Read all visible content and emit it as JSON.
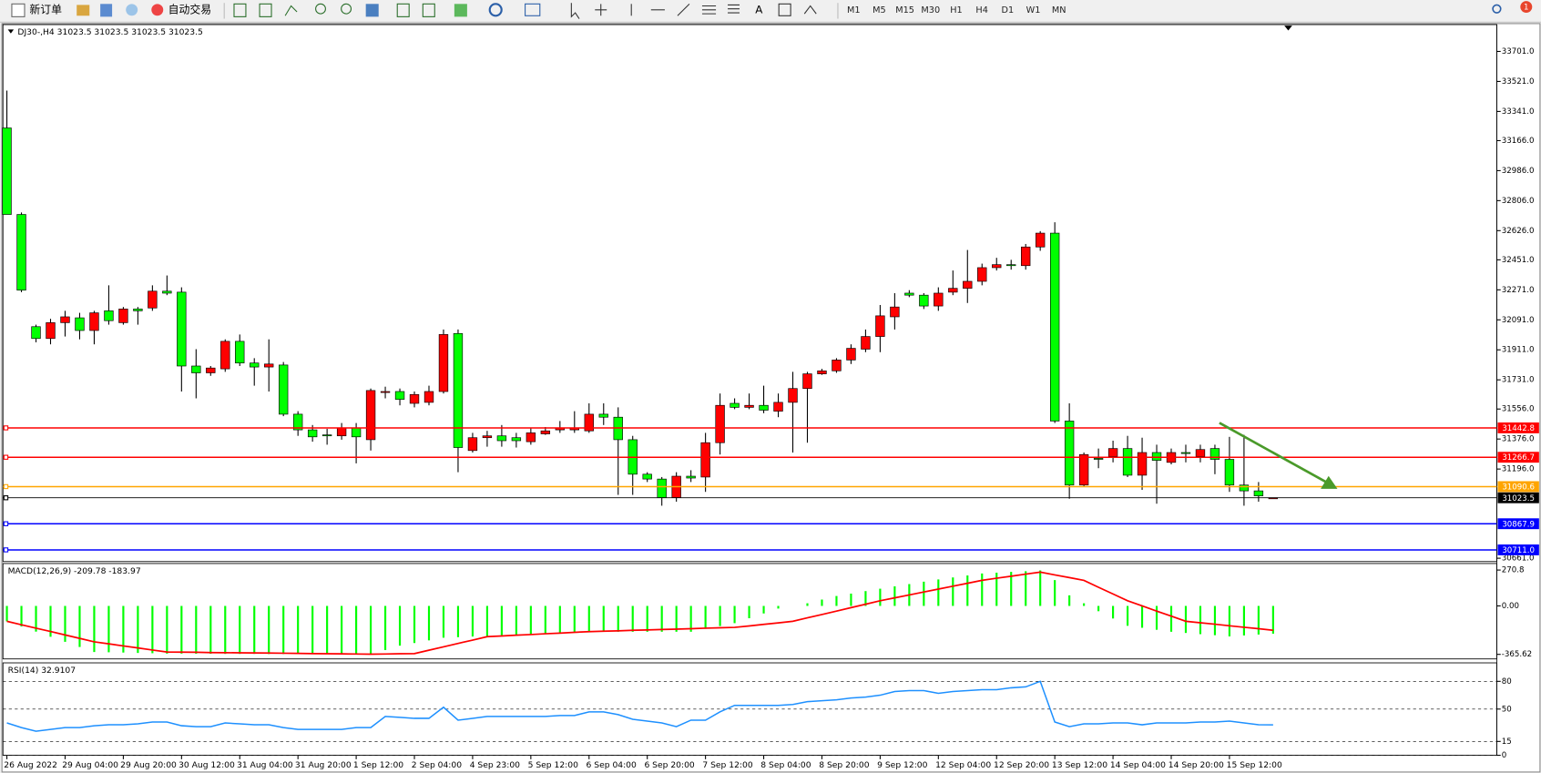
{
  "toolbar": {
    "new_order": "新订单",
    "auto_trading": "自动交易",
    "timeframes": [
      "M1",
      "M5",
      "M15",
      "M30",
      "H1",
      "H4",
      "D1",
      "W1",
      "MN"
    ],
    "alert_count": "1"
  },
  "chart_data": [
    {
      "type": "candlestick",
      "title": "DJ30-,H4  31023.5 31023.5 31023.5 31023.5",
      "categories": [
        "26 Aug 2022",
        null,
        null,
        null,
        "29 Aug 04:00",
        null,
        null,
        null,
        "29 Aug 20:00",
        null,
        null,
        null,
        "30 Aug 12:00",
        null,
        null,
        null,
        "31 Aug 04:00",
        null,
        null,
        null,
        "31 Aug 20:00",
        null,
        null,
        null,
        "1 Sep 12:00",
        null,
        null,
        null,
        "2 Sep 04:00",
        null,
        null,
        null,
        "4 Sep 23:00",
        null,
        null,
        null,
        "5 Sep 12:00",
        null,
        null,
        null,
        "6 Sep 04:00",
        null,
        null,
        null,
        "6 Sep 20:00",
        null,
        null,
        null,
        "7 Sep 12:00",
        null,
        null,
        null,
        "8 Sep 04:00",
        null,
        null,
        null,
        "8 Sep 20:00",
        null,
        null,
        null,
        "9 Sep 12:00",
        null,
        null,
        null,
        "12 Sep 04:00",
        null,
        null,
        null,
        "12 Sep 20:00",
        null,
        null,
        null,
        "13 Sep 12:00",
        null,
        null,
        null,
        "14 Sep 04:00",
        null,
        null,
        null,
        "14 Sep 20:00",
        null,
        null,
        null,
        "15 Sep 12:00",
        null,
        null,
        null
      ],
      "open": [
        33242,
        32723,
        32050,
        31979,
        32074,
        32103,
        32027,
        32145,
        32074,
        32156,
        32162,
        32263,
        32257,
        31814,
        31773,
        31797,
        31962,
        31832,
        31808,
        31820,
        31525,
        31431,
        31401,
        31395,
        31443,
        31372,
        31655,
        31661,
        31590,
        31596,
        31661,
        32009,
        31307,
        31384,
        31395,
        31384,
        31360,
        31407,
        31431,
        31431,
        31425,
        31525,
        31507,
        31372,
        31165,
        31136,
        31024,
        31153,
        31148,
        31354,
        31590,
        31566,
        31578,
        31543,
        31596,
        31679,
        31767,
        31785,
        31850,
        31915,
        31991,
        32109,
        32251,
        32239,
        32174,
        32257,
        32280,
        32322,
        32404,
        32422,
        32416,
        32528,
        32611,
        31484,
        31100,
        31260,
        31271,
        31319,
        31159,
        31295,
        31236,
        31295,
        31271,
        31319,
        31254,
        31100,
        31065,
        31023.5
      ],
      "high": [
        33466,
        32735,
        32062,
        32097,
        32145,
        32133,
        32145,
        32298,
        32168,
        32168,
        32298,
        32357,
        32286,
        31915,
        31814,
        31974,
        32003,
        31861,
        31974,
        31838,
        31543,
        31460,
        31437,
        31472,
        31472,
        31679,
        31690,
        31679,
        31661,
        31696,
        32033,
        32033,
        31413,
        31425,
        31460,
        31413,
        31443,
        31448,
        31484,
        31543,
        31590,
        31590,
        31566,
        31395,
        31177,
        31148,
        31177,
        31189,
        31413,
        31649,
        31620,
        31649,
        31696,
        31649,
        31779,
        31779,
        31797,
        31861,
        31944,
        32033,
        32180,
        32251,
        32269,
        32251,
        32286,
        32387,
        32510,
        32428,
        32463,
        32451,
        32546,
        32623,
        32676,
        31590,
        31295,
        31319,
        31366,
        31395,
        31384,
        31342,
        31319,
        31342,
        31342,
        31342,
        31389,
        31401,
        31118,
        31023.5
      ],
      "low": [
        32723,
        32257,
        31956,
        31944,
        31991,
        31974,
        31944,
        32062,
        32062,
        32062,
        32145,
        32239,
        31661,
        31620,
        31755,
        31779,
        31814,
        31696,
        31661,
        31513,
        31395,
        31360,
        31342,
        31372,
        31230,
        31307,
        31620,
        31578,
        31566,
        31578,
        31649,
        31177,
        31295,
        31330,
        31330,
        31325,
        31342,
        31401,
        31413,
        31413,
        31413,
        31460,
        31041,
        31041,
        31118,
        30976,
        31000,
        31118,
        31059,
        31283,
        31555,
        31555,
        31531,
        31507,
        31295,
        31354,
        31761,
        31773,
        31826,
        31897,
        31897,
        32033,
        32227,
        32156,
        32145,
        32239,
        32192,
        32298,
        32387,
        32392,
        32392,
        32505,
        31472,
        31018,
        31089,
        31201,
        31236,
        31148,
        31071,
        30988,
        31224,
        31236,
        31236,
        31165,
        31059,
        30976,
        31000,
        31023.5
      ],
      "close": [
        32723,
        32269,
        31979,
        32074,
        32109,
        32027,
        32133,
        32086,
        32156,
        32145,
        32263,
        32251,
        31814,
        31773,
        31802,
        31962,
        31832,
        31808,
        31826,
        31525,
        31431,
        31389,
        31395,
        31443,
        31389,
        31667,
        31661,
        31614,
        31643,
        31661,
        32003,
        31325,
        31384,
        31395,
        31366,
        31366,
        31413,
        31425,
        31443,
        31443,
        31525,
        31507,
        31372,
        31165,
        31136,
        31024,
        31153,
        31142,
        31354,
        31578,
        31566,
        31578,
        31549,
        31596,
        31679,
        31767,
        31785,
        31850,
        31920,
        31991,
        32115,
        32168,
        32239,
        32174,
        32251,
        32280,
        32322,
        32404,
        32422,
        32416,
        32528,
        32611,
        31484,
        31100,
        31283,
        31254,
        31319,
        31159,
        31295,
        31248,
        31295,
        31289,
        31313,
        31254,
        31100,
        31065,
        31035,
        31023.5
      ],
      "up_color": "#ff0000",
      "down_color": "#00ff00",
      "ylim": [
        30641,
        33862
      ],
      "yticks": [
        {
          "value": 33701,
          "label": "33701.0"
        },
        {
          "value": 33521,
          "label": "33521.0"
        },
        {
          "value": 33341,
          "label": "33341.0"
        },
        {
          "value": 33166,
          "label": "33166.0"
        },
        {
          "value": 32986,
          "label": "32986.0"
        },
        {
          "value": 32806,
          "label": "32806.0"
        },
        {
          "value": 32626,
          "label": "32626.0"
        },
        {
          "value": 32451,
          "label": "32451.0"
        },
        {
          "value": 32271,
          "label": "32271.0"
        },
        {
          "value": 32091,
          "label": "32091.0"
        },
        {
          "value": 31911,
          "label": "31911.0"
        },
        {
          "value": 31731,
          "label": "31731.0"
        },
        {
          "value": 31556,
          "label": "31556.0"
        },
        {
          "value": 31376,
          "label": "31376.0"
        },
        {
          "value": 31196,
          "label": "31196.0"
        },
        {
          "value": 30661,
          "label": "30661.0"
        }
      ],
      "lines": [
        {
          "value": 31442.8,
          "color": "#ff0000"
        },
        {
          "value": 31266.7,
          "color": "#ff0000"
        },
        {
          "value": 31090.6,
          "color": "#ffa500"
        },
        {
          "value": 31023.5,
          "color": "#000000"
        },
        {
          "value": 30867.9,
          "color": "#0000ff"
        },
        {
          "value": 30711,
          "label": "30711.0",
          "color": "#0000ff"
        }
      ]
    },
    {
      "type": "macd",
      "title": "MACD(12,26,9) -209.78 -183.97",
      "series": [
        {
          "color": "#00ff00",
          "values": [
            -116,
            -155,
            -194,
            -233,
            -271,
            -310,
            -348,
            -350,
            -352,
            -355,
            -357,
            -360,
            -360,
            -361,
            -361,
            -362,
            -362,
            -362,
            -363,
            -363,
            -363,
            -364,
            -364,
            -364,
            -365,
            -365,
            -333,
            -300,
            -280,
            -260,
            -240,
            -236,
            -231,
            -227,
            -222,
            -218,
            -213,
            -209,
            -204,
            -200,
            -195,
            -195,
            -195,
            -195,
            -195,
            -195,
            -195,
            -195,
            -173,
            -152,
            -130,
            -93,
            -57,
            -20,
            0,
            20,
            48,
            75,
            93,
            112,
            130,
            148,
            165,
            183,
            200,
            215,
            230,
            245,
            251,
            257,
            262,
            268,
            195,
            80,
            20,
            -40,
            -95,
            -150,
            -165,
            -180,
            -195,
            -204,
            -213,
            -221,
            -230,
            -223,
            -216,
            -209.78
          ]
        },
        {
          "color": "#ff0000",
          "values": [
            -116,
            -142,
            -168,
            -193,
            -219,
            -245,
            -271,
            -286,
            -302,
            -317,
            -333,
            -348,
            -349,
            -350,
            -352,
            -353,
            -354,
            -355,
            -356,
            -357,
            -358,
            -360,
            -361,
            -362,
            -363,
            -364,
            -363,
            -361,
            -360,
            -334,
            -309,
            -283,
            -258,
            -232,
            -227,
            -221,
            -216,
            -210,
            -205,
            -199,
            -194,
            -191,
            -188,
            -184,
            -181,
            -178,
            -175,
            -172,
            -168,
            -165,
            -162,
            -151,
            -139,
            -128,
            -116,
            -90,
            -65,
            -39,
            -13,
            13,
            39,
            61,
            83,
            105,
            127,
            149,
            171,
            193,
            209,
            224,
            240,
            255,
            234,
            214,
            193,
            141,
            90,
            39,
            0,
            -39,
            -77,
            -116,
            -127,
            -138,
            -150,
            -161,
            -172,
            -183.97
          ]
        }
      ],
      "ylim": [
        -400,
        320
      ],
      "yticks": [
        270.8,
        {
          "value": 0,
          "label": "0.00"
        },
        -365.62
      ]
    },
    {
      "type": "line",
      "title": "RSI(14) 32.9107",
      "color": "#1e90ff",
      "values": [
        35,
        30,
        26,
        28,
        30,
        30,
        32,
        33,
        33,
        34,
        36,
        36,
        32,
        31,
        31,
        35,
        34,
        33,
        33,
        30,
        28,
        28,
        28,
        28,
        30,
        30,
        42,
        41,
        40,
        40,
        52,
        38,
        40,
        42,
        42,
        42,
        42,
        42,
        43,
        43,
        47,
        47,
        44,
        39,
        37,
        35,
        31,
        38,
        38,
        47,
        54,
        54,
        54,
        54,
        55,
        58,
        59,
        60,
        62,
        63,
        65,
        69,
        70,
        70,
        67,
        69,
        70,
        71,
        71,
        73,
        74,
        80,
        36,
        31,
        34,
        34,
        35,
        35,
        33,
        35,
        35,
        35,
        36,
        36,
        37,
        35,
        33,
        32.9107
      ],
      "ylim": [
        0,
        100
      ],
      "yticks": [
        0,
        15,
        50,
        80
      ],
      "grid": true
    }
  ]
}
